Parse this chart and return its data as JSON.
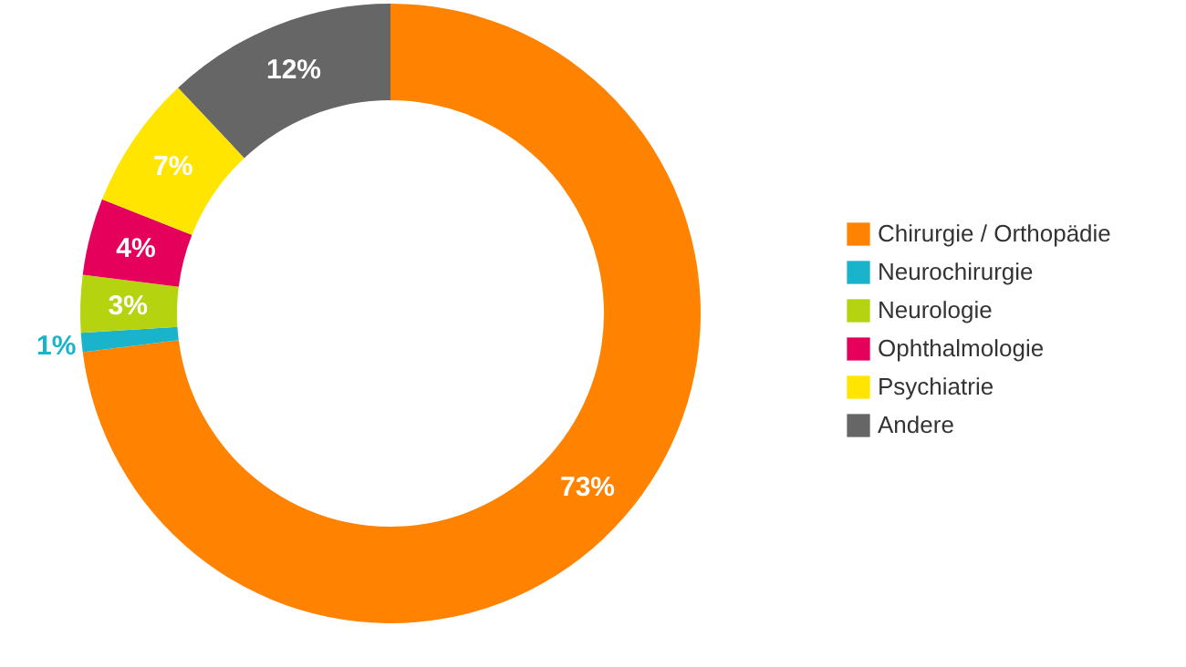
{
  "chart_data": {
    "type": "donut",
    "categories": [
      "Chirurgie / Orthopädie",
      "Neurochirurgie",
      "Neurologie",
      "Ophthalmologie",
      "Psychiatrie",
      "Andere"
    ],
    "values": [
      73,
      1,
      3,
      4,
      7,
      12
    ],
    "colors": [
      "#ff8200",
      "#19b4cc",
      "#b5d30f",
      "#e4005b",
      "#ffe500",
      "#666666"
    ],
    "value_labels": [
      "73%",
      "1%",
      "3%",
      "4%",
      "7%",
      "12%"
    ],
    "legend": "right"
  }
}
